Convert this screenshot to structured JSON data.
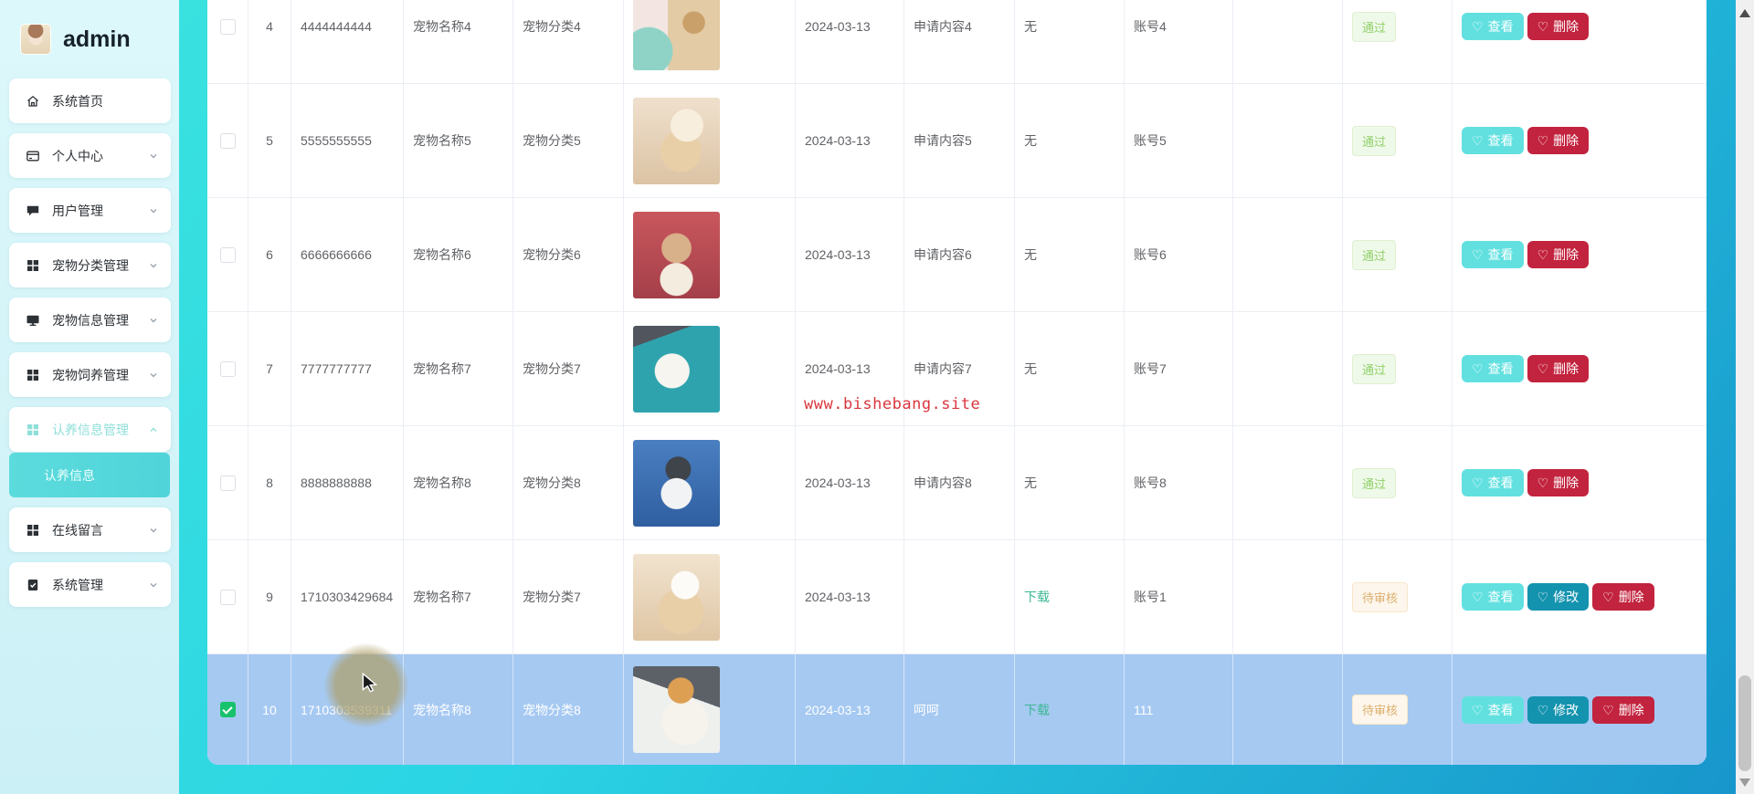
{
  "sidebar": {
    "user": {
      "name": "admin"
    },
    "items": [
      {
        "label": "系统首页",
        "icon": "home-icon",
        "chevron": false,
        "active": false
      },
      {
        "label": "个人中心",
        "icon": "card-icon",
        "chevron": true,
        "active": false
      },
      {
        "label": "用户管理",
        "icon": "chat-icon",
        "chevron": true,
        "active": false
      },
      {
        "label": "宠物分类管理",
        "icon": "grid-icon",
        "chevron": true,
        "active": false
      },
      {
        "label": "宠物信息管理",
        "icon": "monitor-icon",
        "chevron": true,
        "active": false
      },
      {
        "label": "宠物饲养管理",
        "icon": "grid-icon",
        "chevron": true,
        "active": false
      },
      {
        "label": "认养信息管理",
        "icon": "grid-icon",
        "chevron": true,
        "active": true
      },
      {
        "label": "在线留言",
        "icon": "grid-icon",
        "chevron": true,
        "active": false
      },
      {
        "label": "系统管理",
        "icon": "clipboard-icon",
        "chevron": true,
        "active": false
      }
    ],
    "submenu": {
      "label": "认养信息",
      "active": true
    }
  },
  "watermark": {
    "text": "www.bishebang.site"
  },
  "table": {
    "rows": [
      {
        "num": "4",
        "phone": "4444444444",
        "name": "宠物名称4",
        "category": "宠物分类4",
        "photo": "pug-collage-photo",
        "date": "2024-03-13",
        "content": "申请内容4",
        "download": "无",
        "download_link": false,
        "account": "账号4",
        "extra": "",
        "status": "通过",
        "status_type": "success",
        "actions": [
          "查看",
          "删除"
        ],
        "checked": false,
        "selected": false
      },
      {
        "num": "5",
        "phone": "5555555555",
        "name": "宠物名称5",
        "category": "宠物分类5",
        "photo": "corgi-beige-photo",
        "date": "2024-03-13",
        "content": "申请内容5",
        "download": "无",
        "download_link": false,
        "account": "账号5",
        "extra": "",
        "status": "通过",
        "status_type": "success",
        "actions": [
          "查看",
          "删除"
        ],
        "checked": false,
        "selected": false
      },
      {
        "num": "6",
        "phone": "6666666666",
        "name": "宠物名称6",
        "category": "宠物分类6",
        "photo": "corgi-cake-photo",
        "date": "2024-03-13",
        "content": "申请内容6",
        "download": "无",
        "download_link": false,
        "account": "账号6",
        "extra": "",
        "status": "通过",
        "status_type": "success",
        "actions": [
          "查看",
          "删除"
        ],
        "checked": false,
        "selected": false
      },
      {
        "num": "7",
        "phone": "7777777777",
        "name": "宠物名称7",
        "category": "宠物分类7",
        "photo": "white-pup-teal-photo",
        "date": "2024-03-13",
        "content": "申请内容7",
        "download": "无",
        "download_link": false,
        "account": "账号7",
        "extra": "",
        "status": "通过",
        "status_type": "success",
        "actions": [
          "查看",
          "删除"
        ],
        "checked": false,
        "selected": false
      },
      {
        "num": "8",
        "phone": "8888888888",
        "name": "宠物名称8",
        "category": "宠物分类8",
        "photo": "corgi-blue-photo",
        "date": "2024-03-13",
        "content": "申请内容8",
        "download": "无",
        "download_link": false,
        "account": "账号8",
        "extra": "",
        "status": "通过",
        "status_type": "success",
        "actions": [
          "查看",
          "删除"
        ],
        "checked": false,
        "selected": false
      },
      {
        "num": "9",
        "phone": "1710303429684",
        "name": "宠物名称7",
        "category": "宠物分类7",
        "photo": "corgi-cream-photo",
        "date": "2024-03-13",
        "content": "",
        "download": "下载",
        "download_link": true,
        "account": "账号1",
        "extra": "",
        "status": "待审核",
        "status_type": "warning",
        "actions": [
          "查看",
          "修改",
          "删除"
        ],
        "checked": false,
        "selected": false
      },
      {
        "num": "10",
        "phone": "1710303539311",
        "name": "宠物名称8",
        "category": "宠物分类8",
        "photo": "pomeranian-photo",
        "date": "2024-03-13",
        "content": "呵呵",
        "download": "下载",
        "download_link": true,
        "account": "111",
        "extra": "",
        "status": "待审核",
        "status_type": "warning",
        "actions": [
          "查看",
          "修改",
          "删除"
        ],
        "checked": true,
        "selected": true
      }
    ]
  },
  "colors": {
    "view_button": "#62e0e0",
    "edit_button": "#1493af",
    "delete_button": "#c2233e",
    "success_text": "#90d06a",
    "warning_text": "#dcaf6e",
    "selected_row": "#a6c9f2",
    "download_link": "#3cb793",
    "watermark": "#d9363e",
    "sidebar_active": "#8fdfd9",
    "checkbox_checked": "#18c26c"
  }
}
